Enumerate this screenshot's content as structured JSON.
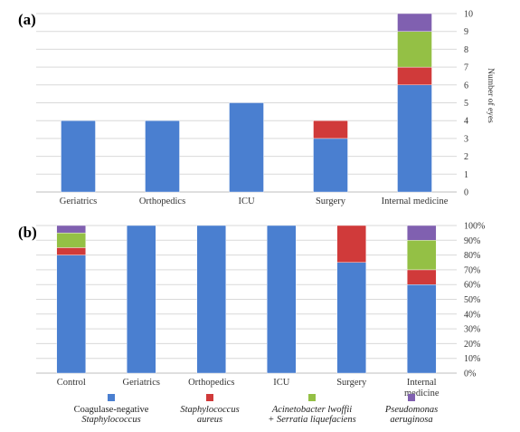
{
  "colors": {
    "blue": "#4a7fd0",
    "red": "#d03a3a",
    "green": "#94c045",
    "purple": "#8060b0",
    "grid": "#d9d9d9"
  },
  "chart_data": [
    {
      "panel": "(a)",
      "type": "bar",
      "stacked": true,
      "categories": [
        "Geriatrics",
        "Orthopedics",
        "ICU",
        "Surgery",
        "Internal medicine"
      ],
      "ylabel": "Number of eyes",
      "ylim": [
        0,
        10
      ],
      "yticks": [
        0,
        1,
        2,
        3,
        4,
        5,
        6,
        7,
        8,
        9,
        10
      ],
      "axis_side": "right",
      "grid": true,
      "series": [
        {
          "values": [
            4,
            4,
            5,
            3,
            6
          ],
          "color": "blue"
        },
        {
          "values": [
            0,
            0,
            0,
            1,
            1
          ],
          "color": "red"
        },
        {
          "values": [
            0,
            0,
            0,
            0,
            2
          ],
          "color": "green"
        },
        {
          "values": [
            0,
            0,
            0,
            0,
            1
          ],
          "color": "purple"
        }
      ]
    },
    {
      "panel": "(b)",
      "type": "bar",
      "stacked": true,
      "percent": true,
      "categories": [
        [
          "Control"
        ],
        [
          "Geriatrics"
        ],
        [
          "Orthopedics"
        ],
        [
          "ICU"
        ],
        [
          "Surgery"
        ],
        [
          "Internal",
          "medicine"
        ]
      ],
      "ylim": [
        0,
        100
      ],
      "yticks": [
        0,
        10,
        20,
        30,
        40,
        50,
        60,
        70,
        80,
        90,
        100
      ],
      "ytick_labels": [
        "0%",
        "10%",
        "20%",
        "30%",
        "40%",
        "50%",
        "60%",
        "70%",
        "80%",
        "90%",
        "100%"
      ],
      "axis_side": "right",
      "grid": true,
      "series": [
        {
          "values": [
            80,
            100,
            100,
            100,
            75,
            60
          ],
          "color": "blue"
        },
        {
          "values": [
            5,
            0,
            0,
            0,
            25,
            10
          ],
          "color": "red"
        },
        {
          "values": [
            10,
            0,
            0,
            0,
            0,
            20
          ],
          "color": "green"
        },
        {
          "values": [
            5,
            0,
            0,
            0,
            0,
            10
          ],
          "color": "purple"
        }
      ]
    }
  ],
  "legend": [
    {
      "color": "blue",
      "lines": [
        "Coagulase-negative",
        "Staphylococcus"
      ],
      "italic": [
        false,
        true
      ]
    },
    {
      "color": "red",
      "lines": [
        "Staphylococcus",
        "aureus"
      ],
      "italic": [
        true,
        true
      ]
    },
    {
      "color": "green",
      "lines": [
        "Acinetobacter lwoffii",
        "+ Serratia liquefaciens"
      ],
      "italic": [
        true,
        true
      ]
    },
    {
      "color": "purple",
      "lines": [
        "Pseudomonas",
        "aeruginosa"
      ],
      "italic": [
        true,
        true
      ]
    }
  ]
}
